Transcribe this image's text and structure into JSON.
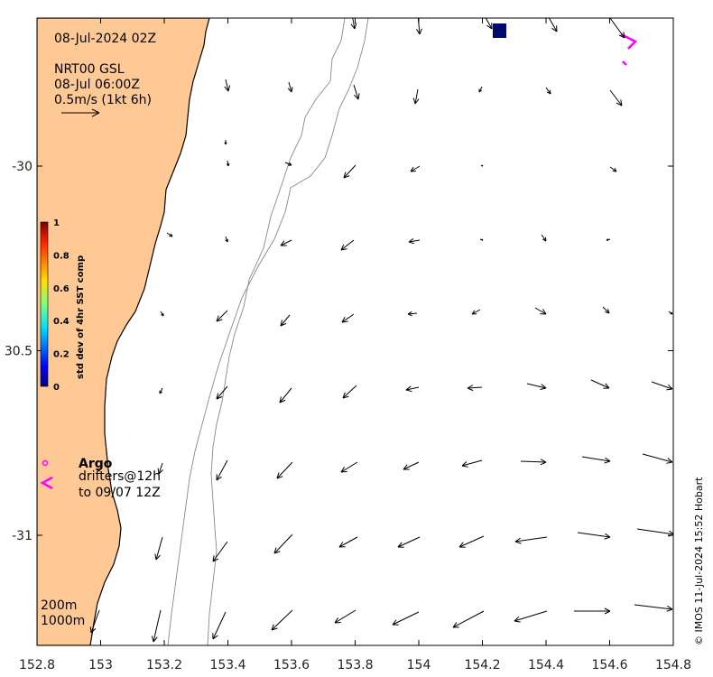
{
  "map": {
    "date_label": "08-Jul-2024 02Z",
    "product_label": "NRT00 GSL",
    "product_time": "08-Jul 06:00Z",
    "scale_label": "0.5m/s (1kt 6h)",
    "credit": "© IMOS 11-Jul-2024 15:52 Hobart",
    "lon_ticks": [
      152.8,
      153,
      153.2,
      153.4,
      153.6,
      153.8,
      154,
      154.2,
      154.4,
      154.6,
      154.8
    ],
    "lon_tick_labels": [
      "152.8",
      "153",
      "153.2",
      "153.4",
      "153.6",
      "153.8",
      "154",
      "154.2",
      "154.4",
      "154.6",
      "154.8"
    ],
    "lat_ticks": [
      -30,
      -30.5,
      -31
    ],
    "lat_tick_labels": [
      "-30",
      "30.5",
      "-31"
    ],
    "lon_range": [
      152.8,
      154.8
    ],
    "lat_range": [
      -29.6,
      -31.3
    ],
    "colorbar": {
      "title": "std dev of 4hr SST comp",
      "ticks": [
        "1",
        "0.8",
        "0.6",
        "0.4",
        "0.2",
        "0"
      ]
    },
    "legend": {
      "argo_label": "Argo",
      "drifters_label": "drifters@12h",
      "drifters_until": "to 09/07 12Z",
      "argo_color": "#ff00ff"
    },
    "isobaths": [
      "200m",
      "1000m"
    ],
    "colors": {
      "land": "#fec994",
      "sst_patch": "#000a6e",
      "arrows": "#000000",
      "isobath": "#888888",
      "drifter": "#ff00ff"
    }
  }
}
